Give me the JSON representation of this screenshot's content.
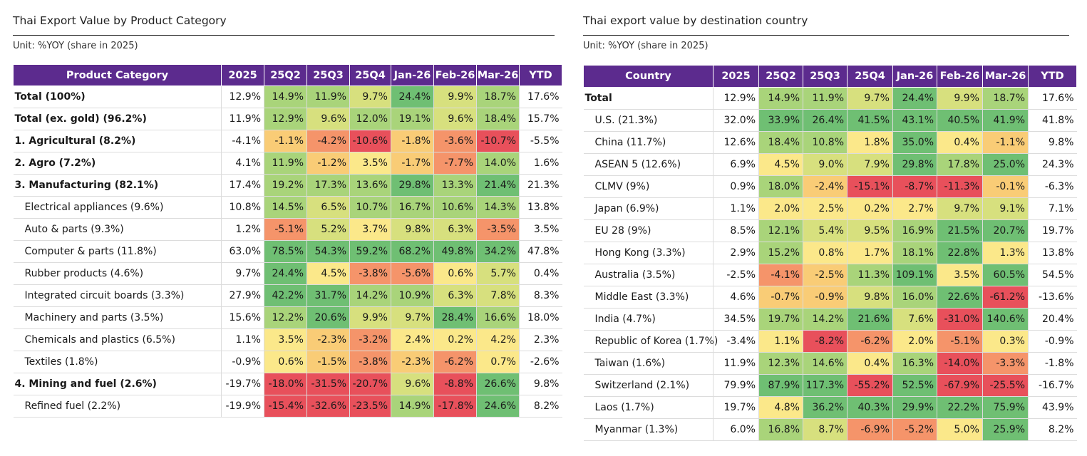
{
  "colors": {
    "header_bg": "#5c2b8e",
    "scale": [
      "#e8505b",
      "#f5946a",
      "#f9cc76",
      "#fbe88a",
      "#d7e07e",
      "#a9d47a",
      "#6fbf73"
    ]
  },
  "left": {
    "title": "Thai Export Value by Product Category",
    "unit": "Unit: %YOY (share in 2025)",
    "columns": [
      "Product Category",
      "2025",
      "25Q2",
      "25Q3",
      "25Q4",
      "Jan-26",
      "Feb-26",
      "Mar-26",
      "YTD"
    ],
    "rows": [
      {
        "label": "Total (100%)",
        "style": "bold",
        "values": [
          "12.9%",
          "14.9%",
          "11.9%",
          "9.7%",
          "24.4%",
          "9.9%",
          "18.7%",
          "17.6%"
        ]
      },
      {
        "label": "Total (ex. gold) (96.2%)",
        "style": "bold",
        "values": [
          "11.9%",
          "12.9%",
          "9.6%",
          "12.0%",
          "19.1%",
          "9.6%",
          "18.4%",
          "15.7%"
        ]
      },
      {
        "label": "1. Agricultural (8.2%)",
        "style": "bold",
        "values": [
          "-4.1%",
          "-1.1%",
          "-4.2%",
          "-10.6%",
          "-1.8%",
          "-3.6%",
          "-10.7%",
          "-5.5%"
        ]
      },
      {
        "label": "2. Agro (7.2%)",
        "style": "bold",
        "values": [
          "4.1%",
          "11.9%",
          "-1.2%",
          "3.5%",
          "-1.7%",
          "-7.7%",
          "14.0%",
          "1.6%"
        ]
      },
      {
        "label": "3. Manufacturing (82.1%)",
        "style": "bold",
        "values": [
          "17.4%",
          "19.2%",
          "17.3%",
          "13.6%",
          "29.8%",
          "13.3%",
          "21.4%",
          "21.3%"
        ]
      },
      {
        "label": "Electrical appliances (9.6%)",
        "style": "sub",
        "values": [
          "10.8%",
          "14.5%",
          "6.5%",
          "10.7%",
          "16.7%",
          "10.6%",
          "14.3%",
          "13.8%"
        ]
      },
      {
        "label": "Auto & parts (9.3%)",
        "style": "sub",
        "values": [
          "1.2%",
          "-5.1%",
          "5.2%",
          "3.7%",
          "9.8%",
          "6.3%",
          "-3.5%",
          "3.5%"
        ]
      },
      {
        "label": "Computer & parts (11.8%)",
        "style": "sub",
        "values": [
          "63.0%",
          "78.5%",
          "54.3%",
          "59.2%",
          "68.2%",
          "49.8%",
          "34.2%",
          "47.8%"
        ]
      },
      {
        "label": "Rubber products (4.6%)",
        "style": "sub",
        "values": [
          "9.7%",
          "24.4%",
          "4.5%",
          "-3.8%",
          "-5.6%",
          "0.6%",
          "5.7%",
          "0.4%"
        ]
      },
      {
        "label": "Integrated circuit boards (3.3%)",
        "style": "sub",
        "values": [
          "27.9%",
          "42.2%",
          "31.7%",
          "14.2%",
          "10.9%",
          "6.3%",
          "7.8%",
          "8.3%"
        ]
      },
      {
        "label": "Machinery and parts (3.5%)",
        "style": "sub",
        "values": [
          "15.6%",
          "12.2%",
          "20.6%",
          "9.9%",
          "9.7%",
          "28.4%",
          "16.6%",
          "18.0%"
        ]
      },
      {
        "label": "Chemicals and plastics (6.5%)",
        "style": "sub",
        "values": [
          "1.1%",
          "3.5%",
          "-2.3%",
          "-3.2%",
          "2.4%",
          "0.2%",
          "4.2%",
          "2.3%"
        ]
      },
      {
        "label": "Textiles (1.8%)",
        "style": "sub",
        "values": [
          "-0.9%",
          "0.6%",
          "-1.5%",
          "-3.8%",
          "-2.3%",
          "-6.2%",
          "0.7%",
          "-2.6%"
        ]
      },
      {
        "label": "4. Mining and fuel (2.6%)",
        "style": "bold",
        "values": [
          "-19.7%",
          "-18.0%",
          "-31.5%",
          "-20.7%",
          "9.6%",
          "-8.8%",
          "26.6%",
          "9.8%"
        ]
      },
      {
        "label": "Refined fuel (2.2%)",
        "style": "sub",
        "values": [
          "-19.9%",
          "-15.4%",
          "-32.6%",
          "-23.5%",
          "14.9%",
          "-17.8%",
          "24.6%",
          "8.2%"
        ]
      }
    ]
  },
  "right": {
    "title": "Thai export value by destination country",
    "unit": "Unit: %YOY (share in 2025)",
    "columns": [
      "Country",
      "2025",
      "25Q2",
      "25Q3",
      "25Q4",
      "Jan-26",
      "Feb-26",
      "Mar-26",
      "YTD"
    ],
    "rows": [
      {
        "label": "Total",
        "style": "bold",
        "values": [
          "12.9%",
          "14.9%",
          "11.9%",
          "9.7%",
          "24.4%",
          "9.9%",
          "18.7%",
          "17.6%"
        ]
      },
      {
        "label": "U.S. (21.3%)",
        "style": "sub",
        "values": [
          "32.0%",
          "33.9%",
          "26.4%",
          "41.5%",
          "43.1%",
          "40.5%",
          "41.9%",
          "41.8%"
        ]
      },
      {
        "label": "China (11.7%)",
        "style": "sub",
        "values": [
          "12.6%",
          "18.4%",
          "10.8%",
          "1.8%",
          "35.0%",
          "0.4%",
          "-1.1%",
          "9.8%"
        ]
      },
      {
        "label": "ASEAN 5 (12.6%)",
        "style": "sub",
        "values": [
          "6.9%",
          "4.5%",
          "9.0%",
          "7.9%",
          "29.8%",
          "17.8%",
          "25.0%",
          "24.3%"
        ]
      },
      {
        "label": "CLMV (9%)",
        "style": "sub",
        "values": [
          "0.9%",
          "18.0%",
          "-2.4%",
          "-15.1%",
          "-8.7%",
          "-11.3%",
          "-0.1%",
          "-6.3%"
        ]
      },
      {
        "label": "Japan (6.9%)",
        "style": "sub",
        "values": [
          "1.1%",
          "2.0%",
          "2.5%",
          "0.2%",
          "2.7%",
          "9.7%",
          "9.1%",
          "7.1%"
        ]
      },
      {
        "label": "EU 28 (9%)",
        "style": "sub",
        "values": [
          "8.5%",
          "12.1%",
          "5.4%",
          "9.5%",
          "16.9%",
          "21.5%",
          "20.7%",
          "19.7%"
        ]
      },
      {
        "label": "Hong Kong (3.3%)",
        "style": "sub",
        "values": [
          "2.9%",
          "15.2%",
          "0.8%",
          "1.7%",
          "18.1%",
          "22.8%",
          "1.3%",
          "13.8%"
        ]
      },
      {
        "label": "Australia (3.5%)",
        "style": "sub",
        "values": [
          "-2.5%",
          "-4.1%",
          "-2.5%",
          "11.3%",
          "109.1%",
          "3.5%",
          "60.5%",
          "54.5%"
        ]
      },
      {
        "label": "Middle East (3.3%)",
        "style": "sub",
        "values": [
          "4.6%",
          "-0.7%",
          "-0.9%",
          "9.8%",
          "16.0%",
          "22.6%",
          "-61.2%",
          "-13.6%"
        ]
      },
      {
        "label": "India (4.7%)",
        "style": "sub",
        "values": [
          "34.5%",
          "19.7%",
          "14.2%",
          "21.6%",
          "7.6%",
          "-31.0%",
          "140.6%",
          "20.4%"
        ]
      },
      {
        "label": "Republic of Korea (1.7%)",
        "style": "sub",
        "values": [
          "-3.4%",
          "1.1%",
          "-8.2%",
          "-6.2%",
          "2.0%",
          "-5.1%",
          "0.3%",
          "-0.9%"
        ]
      },
      {
        "label": "Taiwan (1.6%)",
        "style": "sub",
        "values": [
          "11.9%",
          "12.3%",
          "14.6%",
          "0.4%",
          "16.3%",
          "-14.0%",
          "-3.3%",
          "-1.8%"
        ]
      },
      {
        "label": "Switzerland (2.1%)",
        "style": "sub",
        "values": [
          "79.9%",
          "87.9%",
          "117.3%",
          "-55.2%",
          "52.5%",
          "-67.9%",
          "-25.5%",
          "-16.7%"
        ]
      },
      {
        "label": "Laos (1.7%)",
        "style": "sub",
        "values": [
          "19.7%",
          "4.8%",
          "36.2%",
          "40.3%",
          "29.9%",
          "22.2%",
          "75.9%",
          "43.9%"
        ]
      },
      {
        "label": "Myanmar (1.3%)",
        "style": "sub",
        "values": [
          "6.0%",
          "16.8%",
          "8.7%",
          "-6.9%",
          "-5.2%",
          "5.0%",
          "25.9%",
          "8.2%"
        ]
      }
    ]
  }
}
